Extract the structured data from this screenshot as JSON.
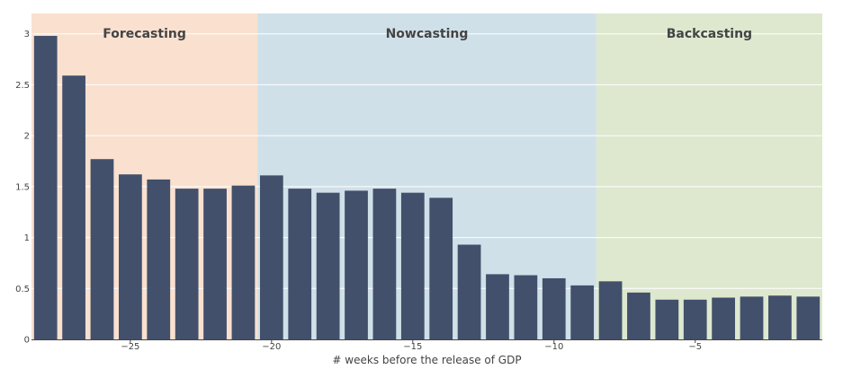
{
  "chart_data": {
    "type": "bar",
    "title": "",
    "xlabel": "# weeks before the release of GDP",
    "ylabel": "",
    "x": [
      -28,
      -27,
      -26,
      -25,
      -24,
      -23,
      -22,
      -21,
      -20,
      -19,
      -18,
      -17,
      -16,
      -15,
      -14,
      -13,
      -12,
      -11,
      -10,
      -9,
      -8,
      -7,
      -6,
      -5,
      -4,
      -3,
      -2,
      -1
    ],
    "values": [
      2.98,
      2.59,
      1.77,
      1.62,
      1.57,
      1.48,
      1.48,
      1.51,
      1.61,
      1.48,
      1.44,
      1.46,
      1.48,
      1.44,
      1.39,
      0.93,
      0.64,
      0.63,
      0.6,
      0.53,
      0.57,
      0.46,
      0.39,
      0.39,
      0.41,
      0.42,
      0.43,
      0.42
    ],
    "xlim": [
      -28.5,
      -0.5
    ],
    "ylim": [
      0,
      3.2
    ],
    "x_ticks": [
      -25,
      -20,
      -15,
      -10,
      -5
    ],
    "x_tick_labels": [
      "−25",
      "−20",
      "−15",
      "−10",
      "−5"
    ],
    "y_ticks": [
      0,
      0.5,
      1,
      1.5,
      2,
      2.5,
      3
    ],
    "y_tick_labels": [
      "0",
      "0.5",
      "1",
      "1.5",
      "2",
      "2.5",
      "3"
    ],
    "bar_color": "#42506b",
    "grid": true,
    "regions": [
      {
        "label": "Forecasting",
        "x_start": -28.5,
        "x_end": -20.5,
        "color": "#f9e0cf"
      },
      {
        "label": "Nowcasting",
        "x_start": -20.5,
        "x_end": -8.5,
        "color": "#cfe0e8"
      },
      {
        "label": "Backcasting",
        "x_start": -8.5,
        "x_end": -0.5,
        "color": "#dde8cf"
      }
    ]
  }
}
